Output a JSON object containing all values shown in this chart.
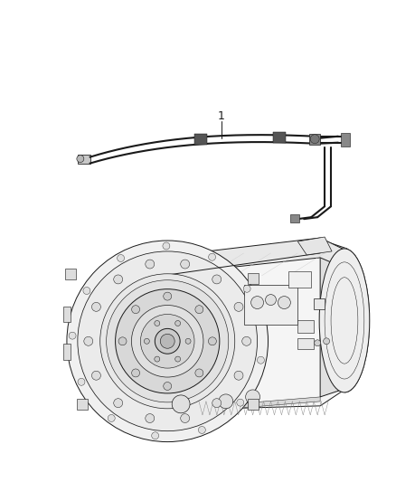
{
  "background_color": "#ffffff",
  "line_color": "#1a1a1a",
  "line_width": 0.7,
  "label_1": "1",
  "fig_width": 4.38,
  "fig_height": 5.33,
  "dpi": 100
}
